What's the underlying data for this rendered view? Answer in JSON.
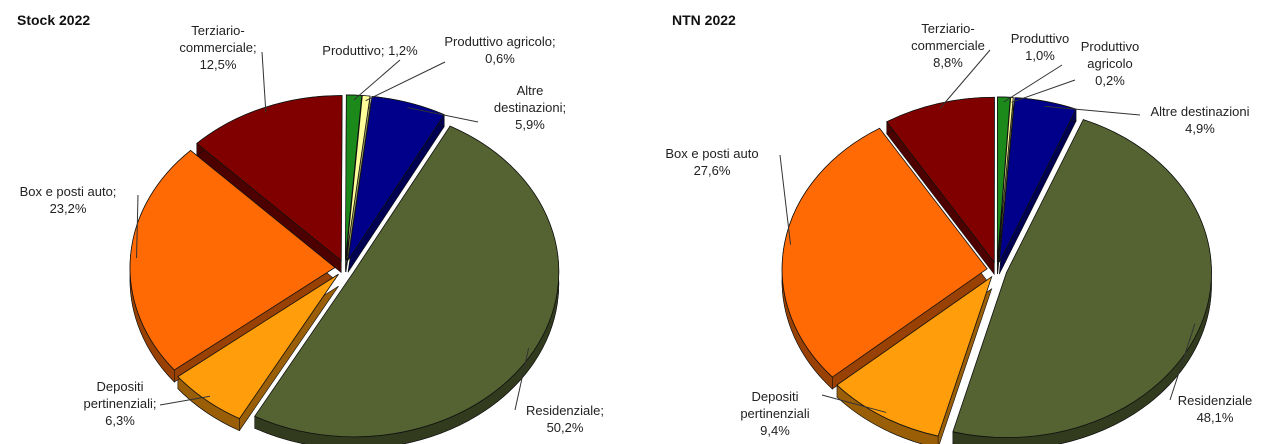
{
  "chart_data": [
    {
      "type": "pie",
      "title": "Stock 2022",
      "categories": [
        "Residenziale;",
        "Depositi pertinenziali;",
        "Box e posti auto;",
        "Terziario-commerciale;",
        "Produttivo;",
        "Produttivo agricolo;",
        "Altre destinazioni;"
      ],
      "values": [
        50.2,
        6.3,
        23.2,
        12.5,
        1.2,
        0.6,
        5.9
      ],
      "value_labels": [
        "50,2%",
        "6,3%",
        "23,2%",
        "12,5%",
        "1,2%",
        "0,6%",
        "5,9%"
      ],
      "colors": [
        "#546331",
        "#ff9d0a",
        "#ff6a05",
        "#800000",
        "#1b8a1b",
        "#ffff99",
        "#00008b"
      ]
    },
    {
      "type": "pie",
      "title": "NTN 2022",
      "categories": [
        "Residenziale",
        "Depositi pertinenziali",
        "Box e posti auto",
        "Terziario-commerciale",
        "Produttivo",
        "Produttivo agricolo",
        "Altre destinazioni"
      ],
      "values": [
        48.1,
        9.4,
        27.6,
        8.8,
        1.0,
        0.2,
        4.9
      ],
      "value_labels": [
        "48,1%",
        "9,4%",
        "27,6%",
        "8,8%",
        "1,0%",
        "0,2%",
        "4,9%"
      ],
      "colors": [
        "#546331",
        "#ff9d0a",
        "#ff6a05",
        "#800000",
        "#1b8a1b",
        "#ffff99",
        "#00008b"
      ]
    }
  ]
}
